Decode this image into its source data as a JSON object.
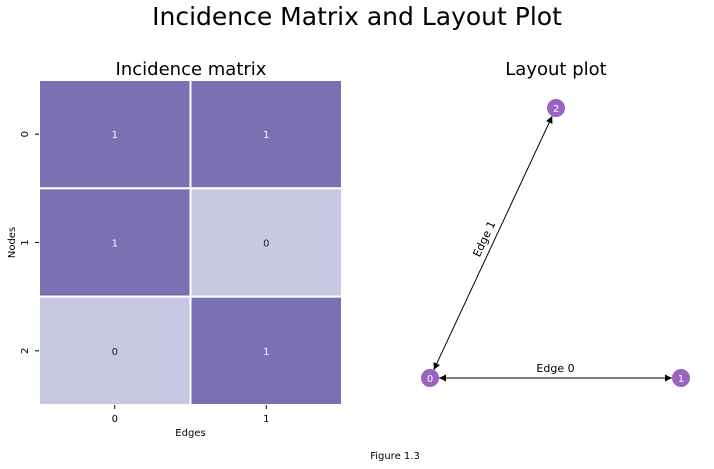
{
  "figure": {
    "title": "Incidence Matrix and Layout Plot",
    "caption": "Figure 1.3"
  },
  "heatmap": {
    "title": "Incidence matrix",
    "xlabel": "Edges",
    "ylabel": "Nodes",
    "x_ticks": [
      "0",
      "1"
    ],
    "y_ticks": [
      "0",
      "1",
      "2"
    ],
    "colors": {
      "one": "#7a70b2",
      "zero": "#c7c9e2",
      "text_on_one": "#ffffff",
      "text_on_zero": "#222222"
    }
  },
  "layout": {
    "title": "Layout plot",
    "node_color": "#9b62c2",
    "node_label_color": "#ffffff",
    "nodes": [
      {
        "id": "0",
        "label": "0"
      },
      {
        "id": "1",
        "label": "1"
      },
      {
        "id": "2",
        "label": "2"
      }
    ],
    "edges": [
      {
        "id": "0",
        "label": "Edge 0",
        "from": "0",
        "to": "1"
      },
      {
        "id": "1",
        "label": "Edge 1",
        "from": "0",
        "to": "2"
      }
    ]
  },
  "chart_data": [
    {
      "type": "heatmap",
      "title": "Incidence matrix",
      "xlabel": "Edges",
      "ylabel": "Nodes",
      "x": [
        "0",
        "1"
      ],
      "y": [
        "0",
        "1",
        "2"
      ],
      "values": [
        [
          1,
          1
        ],
        [
          1,
          0
        ],
        [
          0,
          1
        ]
      ]
    }
  ]
}
